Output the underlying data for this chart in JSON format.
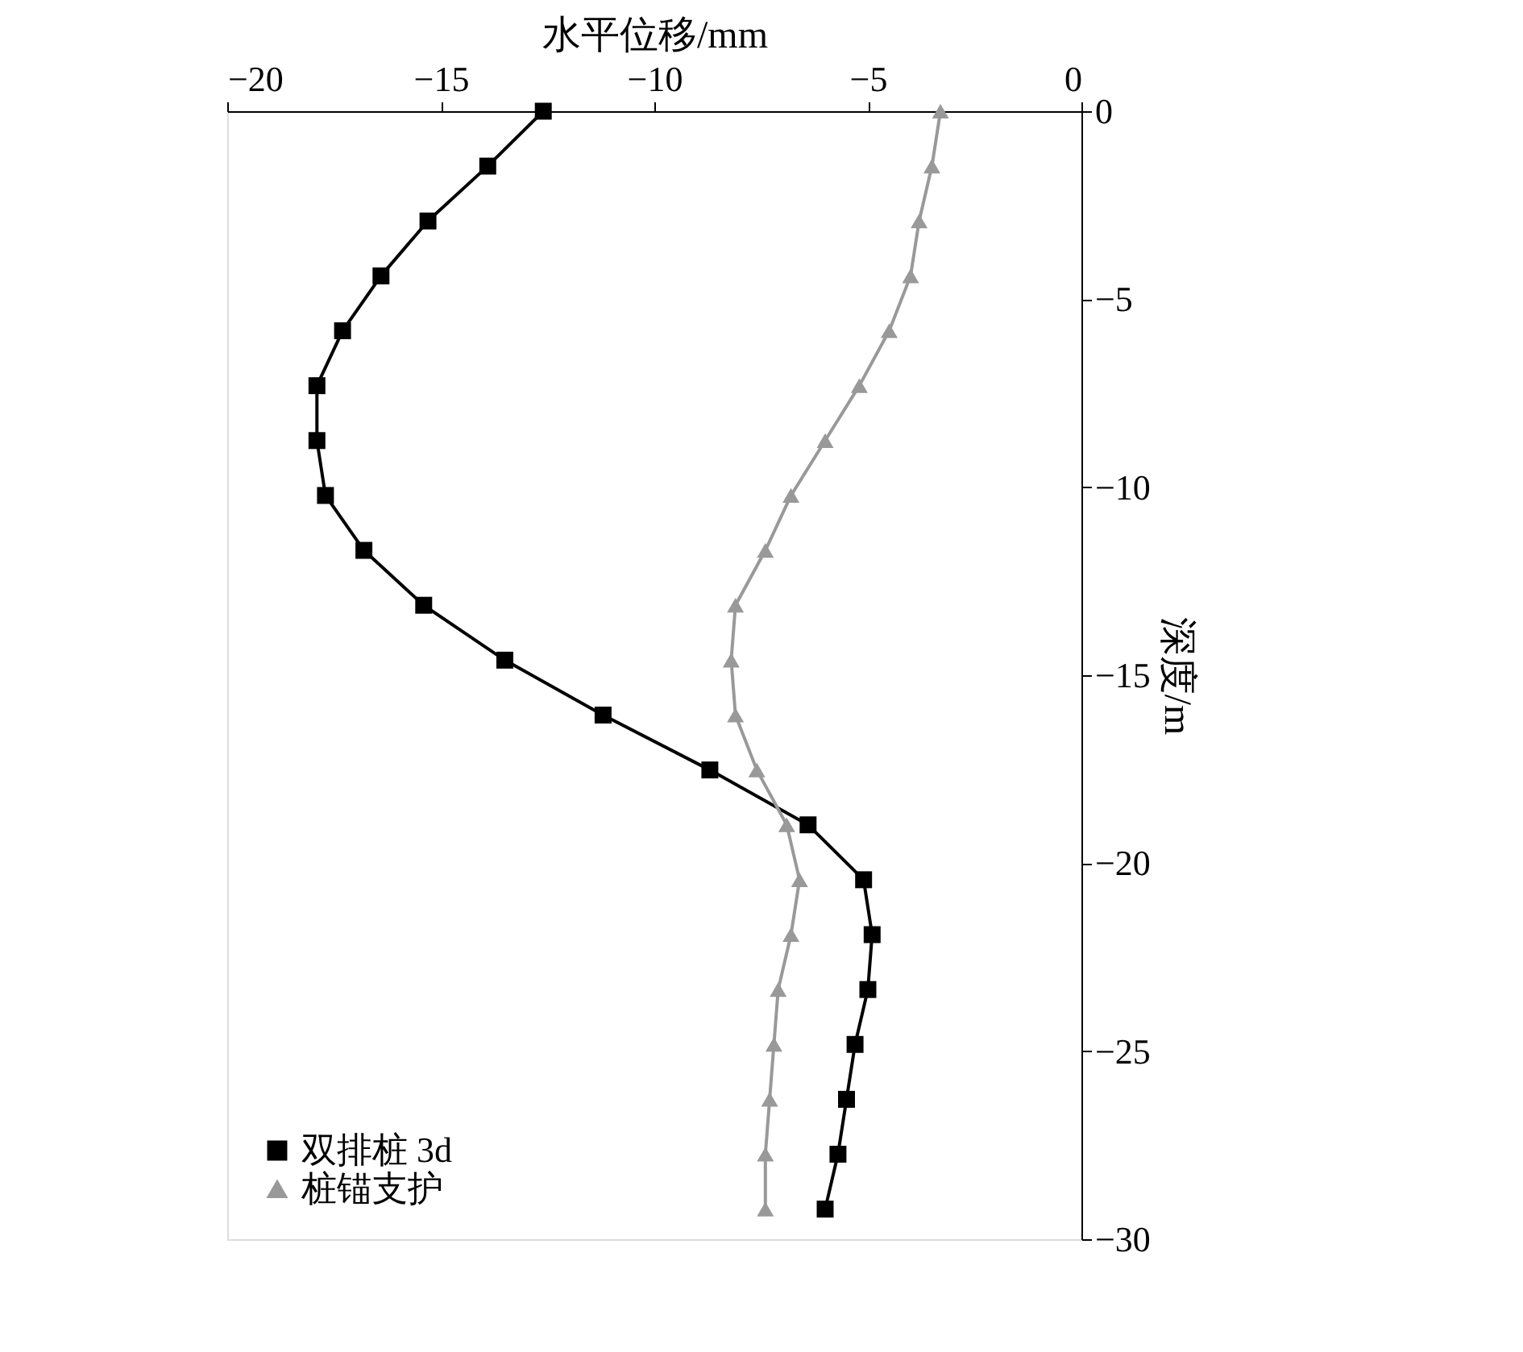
{
  "chart_data": {
    "type": "line",
    "xlabel": "水平位移/mm",
    "ylabel": "深度/m",
    "xlim": [
      -20,
      0
    ],
    "xticks": [
      -20,
      -15,
      -10,
      -5,
      0
    ],
    "ylim": [
      -30,
      0
    ],
    "yticks": [
      -30,
      -25,
      -20,
      -15,
      -10,
      -5,
      0
    ],
    "grid": false,
    "legend": "bottom left",
    "line_style": "solid",
    "series": [
      {
        "name": "双排桩 3d",
        "color": "#000000",
        "marker": "square",
        "x": [
          -12.6,
          -13.9,
          -15.3,
          -16.4,
          -17.3,
          -17.9,
          -17.9,
          -17.7,
          -16.8,
          -15.4,
          -13.5,
          -11.2,
          -8.7,
          -6.4,
          -5.1,
          -4.9,
          -5.0,
          -5.3,
          -5.5,
          -5.7,
          -6.0
        ],
        "values": [
          0,
          -1.46,
          -2.92,
          -4.38,
          -5.84,
          -7.3,
          -8.76,
          -10.22,
          -11.68,
          -13.14,
          -14.6,
          -16.06,
          -17.52,
          -18.98,
          -20.44,
          -21.9,
          -23.36,
          -24.82,
          -26.28,
          -27.74,
          -29.2
        ]
      },
      {
        "name": "桩锚支护",
        "color": "#999999",
        "marker": "triangle",
        "x": [
          -3.3,
          -3.5,
          -3.8,
          -4.0,
          -4.5,
          -5.2,
          -6.0,
          -6.8,
          -7.4,
          -8.1,
          -8.2,
          -8.1,
          -7.6,
          -6.9,
          -6.6,
          -6.8,
          -7.1,
          -7.2,
          -7.3,
          -7.4,
          -7.4
        ],
        "values": [
          0,
          -1.46,
          -2.92,
          -4.38,
          -5.84,
          -7.3,
          -8.76,
          -10.22,
          -11.68,
          -13.14,
          -14.6,
          -16.06,
          -17.52,
          -18.98,
          -20.44,
          -21.9,
          -23.36,
          -24.82,
          -26.28,
          -27.74,
          -29.2
        ]
      }
    ]
  }
}
